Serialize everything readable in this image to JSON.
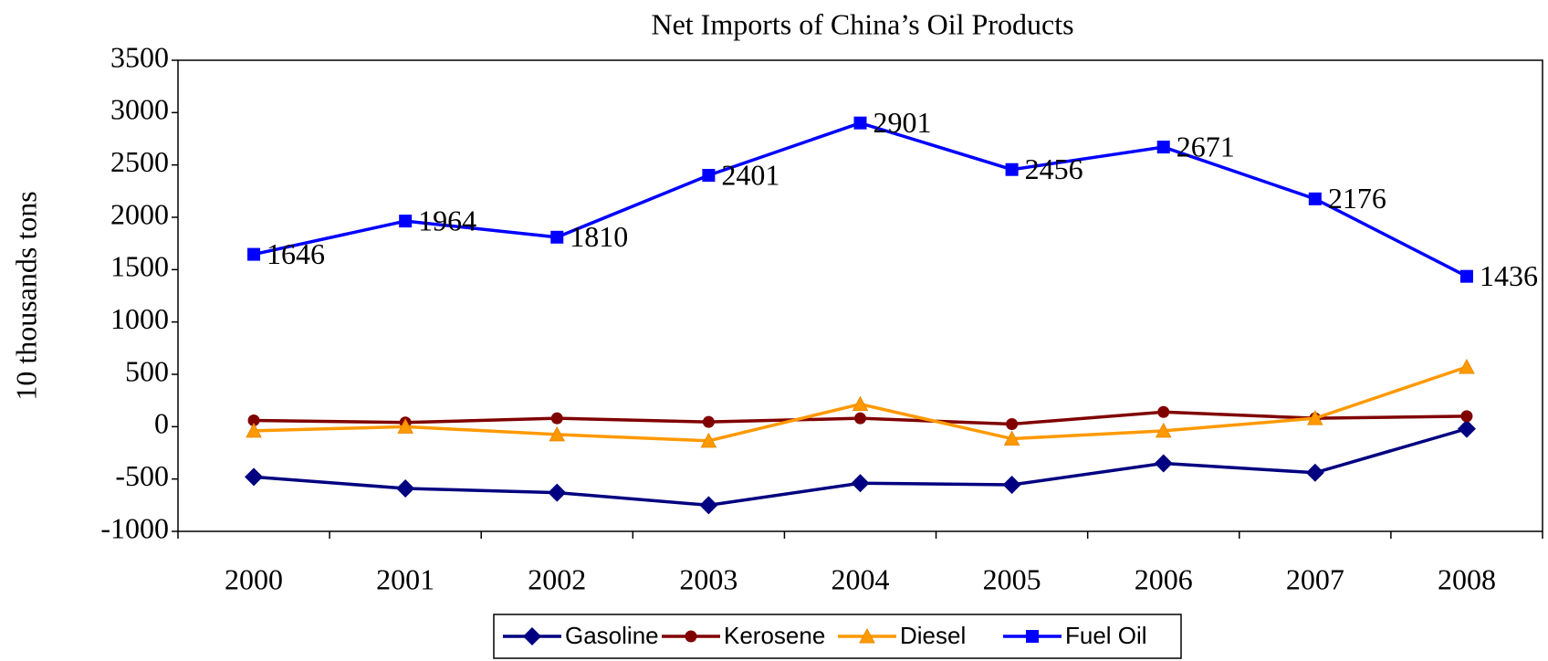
{
  "chart_data": {
    "type": "line",
    "title": "Net Imports of China’s Oil Products",
    "y_label": "10 thousands tons",
    "categories": [
      "2000",
      "2001",
      "2002",
      "2003",
      "2004",
      "2005",
      "2006",
      "2007",
      "2008"
    ],
    "series": [
      {
        "name": "Gasoline",
        "color": "#000080",
        "marker": "diamond",
        "values": [
          -480,
          -590,
          -630,
          -750,
          -540,
          -555,
          -350,
          -440,
          -20
        ]
      },
      {
        "name": "Kerosene",
        "color": "#800000",
        "marker": "circle",
        "values": [
          60,
          40,
          80,
          45,
          80,
          25,
          140,
          80,
          100
        ]
      },
      {
        "name": "Diesel",
        "color": "#ff9900",
        "marker": "triangle",
        "values": [
          -40,
          0,
          -75,
          -135,
          215,
          -115,
          -40,
          80,
          570
        ]
      },
      {
        "name": "Fuel Oil",
        "color": "#0000ff",
        "marker": "square",
        "data_labels": true,
        "values": [
          1646,
          1964,
          1810,
          2401,
          2901,
          2456,
          2671,
          2176,
          1436
        ]
      }
    ],
    "ylim": [
      -1000,
      3500
    ],
    "yticks": [
      -1000,
      -500,
      0,
      500,
      1000,
      1500,
      2000,
      2500,
      3000,
      3500
    ],
    "legend": "bottom"
  }
}
